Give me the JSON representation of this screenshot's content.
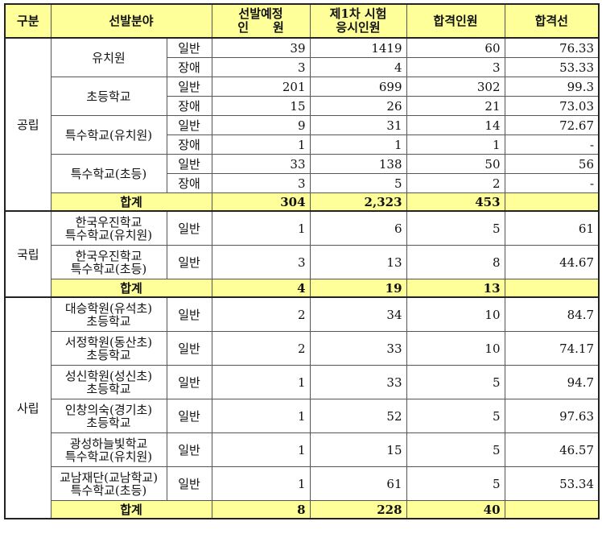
{
  "header": {
    "group": "구분",
    "field": "선발분야",
    "planned_line1": "선발예정",
    "planned_line2": "인　　원",
    "applicants_line1": "제1차 시험",
    "applicants_line2": "응시인원",
    "passed": "합격인원",
    "cutoff": "합격선"
  },
  "public": {
    "label": "공립",
    "rows": [
      {
        "field": "유치원",
        "type": "일반",
        "planned": "39",
        "applicants": "1419",
        "passed": "60",
        "cutoff": "76.33"
      },
      {
        "type": "장애",
        "planned": "3",
        "applicants": "4",
        "passed": "3",
        "cutoff": "53.33"
      },
      {
        "field": "초등학교",
        "type": "일반",
        "planned": "201",
        "applicants": "699",
        "passed": "302",
        "cutoff": "99.3"
      },
      {
        "type": "장애",
        "planned": "15",
        "applicants": "26",
        "passed": "21",
        "cutoff": "73.03"
      },
      {
        "field": "특수학교(유치원)",
        "type": "일반",
        "planned": "9",
        "applicants": "31",
        "passed": "14",
        "cutoff": "72.67"
      },
      {
        "type": "장애",
        "planned": "1",
        "applicants": "1",
        "passed": "1",
        "cutoff": "-"
      },
      {
        "field": "특수학교(초등)",
        "type": "일반",
        "planned": "33",
        "applicants": "138",
        "passed": "50",
        "cutoff": "56"
      },
      {
        "type": "장애",
        "planned": "3",
        "applicants": "5",
        "passed": "2",
        "cutoff": "-"
      }
    ],
    "total": {
      "label": "합계",
      "planned": "304",
      "applicants": "2,323",
      "passed": "453",
      "cutoff": ""
    }
  },
  "national": {
    "label": "국립",
    "rows": [
      {
        "field_line1": "한국우진학교",
        "field_line2": "특수학교(유치원)",
        "type": "일반",
        "planned": "1",
        "applicants": "6",
        "passed": "5",
        "cutoff": "61"
      },
      {
        "field_line1": "한국우진학교",
        "field_line2": "특수학교(초등)",
        "type": "일반",
        "planned": "3",
        "applicants": "13",
        "passed": "8",
        "cutoff": "44.67"
      }
    ],
    "total": {
      "label": "합계",
      "planned": "4",
      "applicants": "19",
      "passed": "13",
      "cutoff": ""
    }
  },
  "private": {
    "label": "사립",
    "rows": [
      {
        "field_line1": "대승학원(유석초)",
        "field_line2": "초등학교",
        "type": "일반",
        "planned": "2",
        "applicants": "34",
        "passed": "10",
        "cutoff": "84.7"
      },
      {
        "field_line1": "서정학원(동산초)",
        "field_line2": "초등학교",
        "type": "일반",
        "planned": "2",
        "applicants": "33",
        "passed": "10",
        "cutoff": "74.17"
      },
      {
        "field_line1": "성신학원(성신초)",
        "field_line2": "초등학교",
        "type": "일반",
        "planned": "1",
        "applicants": "33",
        "passed": "5",
        "cutoff": "94.7"
      },
      {
        "field_line1": "인창의숙(경기초)",
        "field_line2": "초등학교",
        "type": "일반",
        "planned": "1",
        "applicants": "52",
        "passed": "5",
        "cutoff": "97.63"
      },
      {
        "field_line1": "광성하늘빛학교",
        "field_line2": "특수학교(유치원)",
        "type": "일반",
        "planned": "1",
        "applicants": "15",
        "passed": "5",
        "cutoff": "46.57"
      },
      {
        "field_line1": "교남재단(교남학교)",
        "field_line2": "특수학교(초등)",
        "type": "일반",
        "planned": "1",
        "applicants": "61",
        "passed": "5",
        "cutoff": "53.34"
      }
    ],
    "total": {
      "label": "합계",
      "planned": "8",
      "applicants": "228",
      "passed": "40",
      "cutoff": ""
    }
  },
  "colors": {
    "header_bg": "#ffff99",
    "total_bg": "#ffff99",
    "border": "#555555"
  }
}
